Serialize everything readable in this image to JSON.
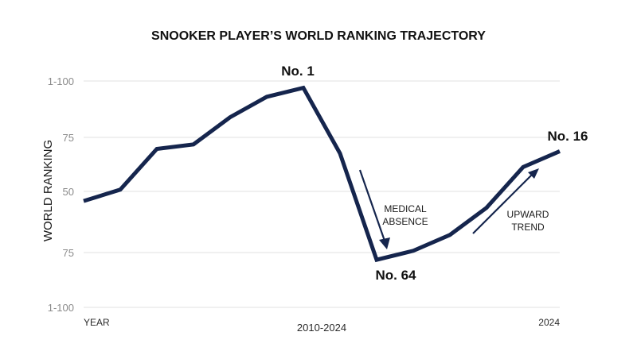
{
  "chart_data": {
    "type": "line",
    "title": "SNOOKER PLAYER’S WORLD RANKING TRAJECTORY",
    "ylabel": "WORLD RANKING",
    "xlabel_left": "YEAR",
    "xlabel_center": "2010-2024",
    "xlabel_right": "2024",
    "ytick_labels": [
      "1-100",
      "75",
      "50",
      "75",
      "1-100"
    ],
    "grid": true,
    "series_color": "#15254d",
    "points": [
      47,
      52,
      70,
      72,
      84,
      93,
      97,
      68,
      21,
      25,
      32,
      44,
      62,
      69
    ],
    "annotations": {
      "peak": "No. 1",
      "low": "No. 64",
      "end": "No. 16",
      "medical": [
        "MEDICAL",
        "ABSENCE"
      ],
      "upward": [
        "UPWARD",
        "TREND"
      ]
    }
  }
}
